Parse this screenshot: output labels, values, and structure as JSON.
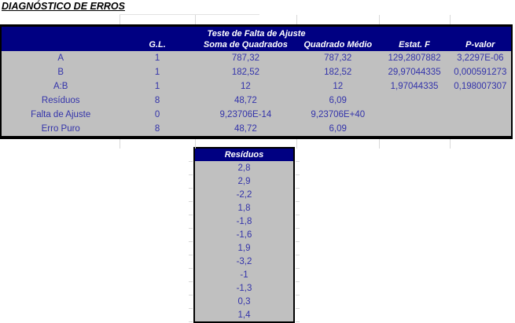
{
  "title": "DIAGNÓSTICO DE ERROS",
  "anova": {
    "caption": "Teste de Falta de Ajuste",
    "headers": [
      "",
      "G.L.",
      "Soma de Quadrados",
      "Quadrado Médio",
      "Estat. F",
      "P-valor"
    ],
    "rows": [
      [
        "A",
        "1",
        "787,32",
        "787,32",
        "129,2807882",
        "3,2297E-06"
      ],
      [
        "B",
        "1",
        "182,52",
        "182,52",
        "29,97044335",
        "0,000591273"
      ],
      [
        "A:B",
        "1",
        "12",
        "12",
        "1,97044335",
        "0,198007307"
      ],
      [
        "Resíduos",
        "8",
        "48,72",
        "6,09",
        "",
        ""
      ],
      [
        "Falta de Ajuste",
        "0",
        "9,23706E-14",
        "9,23706E+40",
        "",
        ""
      ],
      [
        "Erro Puro",
        "8",
        "48,72",
        "6,09",
        "",
        ""
      ]
    ]
  },
  "residuos": {
    "caption": "Resíduos",
    "values": [
      "2,8",
      "2,9",
      "-2,2",
      "1,8",
      "-1,8",
      "-1,6",
      "1,9",
      "-3,2",
      "-1",
      "-1,3",
      "0,3",
      "1,4"
    ]
  },
  "colors": {
    "header_bg": "#000082",
    "body_bg": "#c0c0c0",
    "value_text": "#3333aa",
    "table_border": "#000000",
    "gridline": "#d8d8d8"
  }
}
